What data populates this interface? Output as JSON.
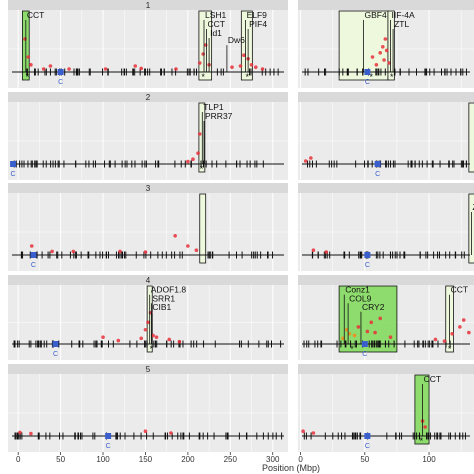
{
  "chart_data": {
    "type": "scatter",
    "xlabel": "Position (Mbp)",
    "x_ticks_left": [
      "0",
      "50",
      "100",
      "150",
      "200",
      "250",
      "300"
    ],
    "x_ticks_right": [
      "0",
      "50",
      "100"
    ],
    "xlim_left": [
      -12,
      318
    ],
    "xlim_right": [
      -2,
      135
    ],
    "colors": {
      "panel": "#ebebeb",
      "grid": "#ffffff",
      "strip": "#d9d9d9",
      "point": "#e8303a",
      "point_orange": "#f28a1a",
      "box_light": "#eefadc",
      "box_green": "#7ed957",
      "centromere": "#3a5fcd",
      "marker": "#111111"
    },
    "centromere_label": "C",
    "panels": [
      {
        "row": 0,
        "side": "left",
        "strip": "1",
        "boxes": [
          {
            "x0": 5,
            "x1": 13,
            "style": "green"
          },
          {
            "x0": 213,
            "x1": 228,
            "style": "light"
          },
          {
            "x0": 263,
            "x1": 276,
            "style": "light"
          }
        ],
        "labels": [
          {
            "text": "CCT",
            "x": 9,
            "h": 0.9
          },
          {
            "text": "LSH1",
            "x": 219,
            "h": 0.9
          },
          {
            "text": "CCT",
            "x": 222,
            "h": 0.75
          },
          {
            "text": "Id1",
            "x": 225,
            "h": 0.6
          },
          {
            "text": "Dw6",
            "x": 246,
            "h": 0.48
          },
          {
            "text": "ELF9",
            "x": 268,
            "h": 0.9
          },
          {
            "text": "PIF4",
            "x": 271,
            "h": 0.75
          }
        ],
        "centromere": 50,
        "stars": [
          11,
          218,
          270
        ],
        "points": [
          [
            8,
            0.55
          ],
          [
            12,
            0.25
          ],
          [
            15,
            0.12
          ],
          [
            30,
            0.05
          ],
          [
            38,
            0.1
          ],
          [
            60,
            0.05
          ],
          [
            103,
            0.05
          ],
          [
            138,
            0.1
          ],
          [
            145,
            0.06
          ],
          [
            186,
            0.05
          ],
          [
            214,
            0.15
          ],
          [
            218,
            0.3
          ],
          [
            221,
            0.45
          ],
          [
            225,
            0.12
          ],
          [
            252,
            0.08
          ],
          [
            262,
            0.1
          ],
          [
            266,
            0.28
          ],
          [
            271,
            0.22
          ],
          [
            275,
            0.12
          ],
          [
            280,
            0.08
          ],
          [
            288,
            0.05
          ]
        ]
      },
      {
        "row": 0,
        "side": "right",
        "boxes": [
          {
            "x0": 30,
            "x1": 68,
            "style": "light"
          },
          {
            "x0": 68,
            "x1": 73,
            "style": "light"
          }
        ],
        "labels": [
          {
            "text": "GBF4",
            "x": 49,
            "h": 0.9
          },
          {
            "text": "IIF-4A",
            "x": 70,
            "h": 0.9
          },
          {
            "text": "ZTL",
            "x": 72,
            "h": 0.75
          }
        ],
        "centromere": 52,
        "stars": [
          55,
          71
        ],
        "points": [
          [
            56,
            0.25
          ],
          [
            59,
            0.12
          ],
          [
            62,
            0.32
          ],
          [
            64,
            0.42
          ],
          [
            65,
            0.2
          ],
          [
            66,
            0.55
          ],
          [
            67,
            0.36
          ],
          [
            69,
            0.15
          ]
        ]
      },
      {
        "row": 1,
        "side": "left",
        "strip": "2",
        "boxes": [
          {
            "x0": 213,
            "x1": 220,
            "style": "light"
          }
        ],
        "labels": [
          {
            "text": "TLP1",
            "x": 217,
            "h": 0.9
          },
          {
            "text": "PRR37",
            "x": 219,
            "h": 0.75
          }
        ],
        "centromere": -6,
        "stars": [
          216
        ],
        "points": [
          [
            200,
            0.04
          ],
          [
            206,
            0.08
          ],
          [
            212,
            0.18
          ],
          [
            214,
            0.5
          ]
        ]
      },
      {
        "row": 1,
        "side": "right",
        "boxes": [
          {
            "x0": 131,
            "x1": 140,
            "style": "light"
          }
        ],
        "labels": [],
        "centromere": 60,
        "stars": [],
        "points": [
          [
            4,
            0.05
          ],
          [
            8,
            0.1
          ]
        ]
      },
      {
        "row": 2,
        "side": "left",
        "strip": "3",
        "boxes": [
          {
            "x0": 214,
            "x1": 221,
            "style": "light"
          }
        ],
        "labels": [],
        "centromere": 18,
        "stars": [],
        "points": [
          [
            16,
            0.15
          ],
          [
            40,
            0.06
          ],
          [
            65,
            0.06
          ],
          [
            120,
            0.06
          ],
          [
            150,
            0.05
          ],
          [
            185,
            0.32
          ],
          [
            200,
            0.15
          ],
          [
            210,
            0.08
          ]
        ]
      },
      {
        "row": 2,
        "side": "right",
        "boxes": [
          {
            "x0": 131,
            "x1": 140,
            "style": "light"
          }
        ],
        "labels": [
          {
            "text": "Zon",
            "x": 133,
            "h": 0.75
          }
        ],
        "centromere": 52,
        "stars": [],
        "points": [
          [
            10,
            0.08
          ],
          [
            20,
            0.05
          ]
        ]
      },
      {
        "row": 3,
        "side": "left",
        "strip": "4",
        "boxes": [
          {
            "x0": 152,
            "x1": 158,
            "style": "light"
          }
        ],
        "labels": [
          {
            "text": "ADOF1.8",
            "x": 155,
            "h": 0.9
          },
          {
            "text": "SRR1",
            "x": 157,
            "h": 0.75
          },
          {
            "text": "CIB1",
            "x": 157,
            "h": 0.6
          }
        ],
        "centromere": 44,
        "stars": [
          157
        ],
        "points": [
          [
            100,
            0.12
          ],
          [
            118,
            0.06
          ],
          [
            145,
            0.1
          ],
          [
            150,
            0.25
          ],
          [
            153,
            0.38
          ],
          [
            156,
            0.55
          ],
          [
            159,
            0.15
          ],
          [
            163,
            0.12
          ],
          [
            178,
            0.08
          ],
          [
            190,
            0.04
          ]
        ]
      },
      {
        "row": 3,
        "side": "right",
        "boxes": [
          {
            "x0": 30,
            "x1": 75,
            "style": "green"
          },
          {
            "x0": 113,
            "x1": 119,
            "style": "light"
          }
        ],
        "labels": [
          {
            "text": "Conz1",
            "x": 34,
            "h": 0.9
          },
          {
            "text": "COL9",
            "x": 37,
            "h": 0.75
          },
          {
            "text": "CRY2",
            "x": 47,
            "h": 0.6
          },
          {
            "text": "CCT",
            "x": 116,
            "h": 0.9
          }
        ],
        "centromere": 50,
        "stars": [
          40,
          116
        ],
        "points": [
          [
            33,
            0.1
          ],
          [
            36,
            0.25
          ],
          [
            38,
            0.18
          ],
          [
            42,
            0.15
          ],
          [
            45,
            0.3
          ],
          [
            52,
            0.22
          ],
          [
            55,
            0.38
          ],
          [
            58,
            0.2
          ],
          [
            62,
            0.45
          ],
          [
            70,
            0.12
          ],
          [
            105,
            0.08
          ],
          [
            112,
            0.05
          ],
          [
            118,
            0.18
          ],
          [
            124,
            0.3
          ],
          [
            127,
            0.42
          ],
          [
            131,
            0.2
          ]
        ]
      },
      {
        "row": 4,
        "side": "left",
        "strip": "5",
        "boxes": [],
        "labels": [],
        "centromere": 106,
        "stars": [],
        "points": [
          [
            2,
            0.06
          ],
          [
            15,
            0.04
          ],
          [
            150,
            0.08
          ],
          [
            180,
            0.05
          ]
        ]
      },
      {
        "row": 4,
        "side": "right",
        "boxes": [
          {
            "x0": 89,
            "x1": 100,
            "style": "green"
          }
        ],
        "labels": [
          {
            "text": "CCT",
            "x": 95,
            "h": 0.9
          }
        ],
        "centromere": 52,
        "stars": [
          94
        ],
        "points": [
          [
            2,
            0.08
          ],
          [
            10,
            0.05
          ],
          [
            95,
            0.25
          ],
          [
            97,
            0.15
          ]
        ]
      }
    ]
  }
}
